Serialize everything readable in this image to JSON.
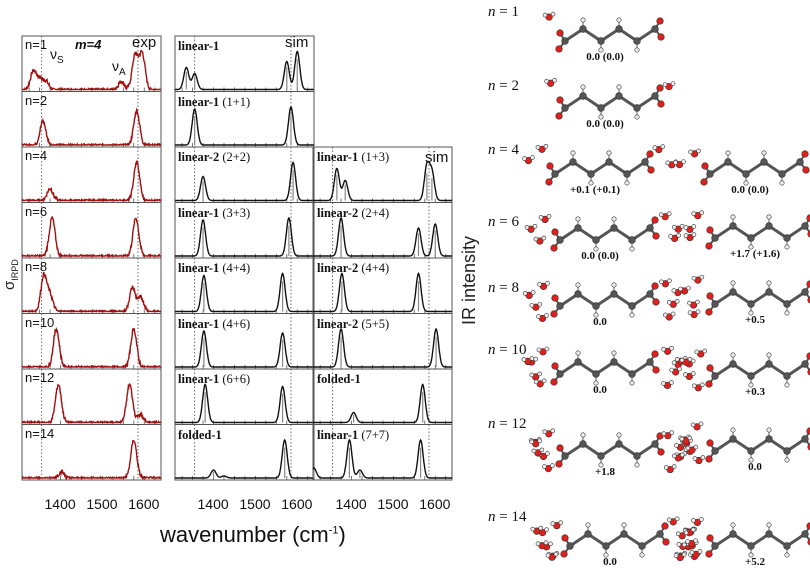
{
  "chart_data": {
    "type": "line",
    "title": "",
    "xlabel": "wavenumber (cm-1)",
    "xlabel_base": "wavenumber (cm",
    "xlabel_sup": "-1",
    "xlabel_close": ")",
    "ylabel_left": "σ",
    "ylabel_left_sub": "IRPD",
    "ylabel_right": "IR intensity",
    "xlim": [
      1308,
      1640
    ],
    "xticks": [
      "1400",
      "1500",
      "1600"
    ],
    "xtick_values": [
      1400,
      1500,
      1600
    ],
    "reference_lines": [
      1355,
      1585
    ],
    "colors": {
      "exp": "#a01010",
      "sim": "#111111",
      "stick": "#888888"
    },
    "header": {
      "m_label": "m=4",
      "exp_label": "exp",
      "sim_label": "sim",
      "nu_s": "ν",
      "nu_s_sub": "S",
      "nu_a": "ν",
      "nu_a_sub": "A"
    },
    "experimental": [
      {
        "n": "n=1",
        "peaks": [
          [
            1335,
            0.45
          ],
          [
            1350,
            0.25
          ],
          [
            1365,
            0.2
          ],
          [
            1545,
            0.2
          ],
          [
            1578,
            0.85
          ],
          [
            1595,
            0.9
          ]
        ]
      },
      {
        "n": "n=2",
        "peaks": [
          [
            1358,
            0.6
          ],
          [
            1582,
            0.85
          ]
        ]
      },
      {
        "n": "n=4",
        "peaks": [
          [
            1375,
            0.3
          ],
          [
            1582,
            0.95
          ]
        ]
      },
      {
        "n": "n=6",
        "peaks": [
          [
            1380,
            0.95
          ],
          [
            1580,
            0.95
          ]
        ]
      },
      {
        "n": "n=8",
        "peaks": [
          [
            1360,
            0.9
          ],
          [
            1375,
            0.4
          ],
          [
            1572,
            0.6
          ],
          [
            1592,
            0.35
          ]
        ]
      },
      {
        "n": "n=10",
        "peaks": [
          [
            1390,
            0.95
          ],
          [
            1575,
            0.95
          ]
        ]
      },
      {
        "n": "n=12",
        "peaks": [
          [
            1395,
            0.95
          ],
          [
            1565,
            0.95
          ],
          [
            1590,
            0.2
          ]
        ]
      },
      {
        "n": "n=14",
        "peaks": [
          [
            1402,
            0.15
          ],
          [
            1575,
            0.95
          ]
        ]
      }
    ],
    "simulated_col1": [
      {
        "name": "linear-1",
        "extra": "",
        "peaks": [
          [
            1335,
            0.55
          ],
          [
            1355,
            0.4
          ],
          [
            1575,
            0.7
          ],
          [
            1600,
            0.95
          ]
        ]
      },
      {
        "name": "linear-1",
        "extra": "(1+1)",
        "peaks": [
          [
            1355,
            0.9
          ],
          [
            1585,
            0.95
          ]
        ]
      },
      {
        "name": "linear-2",
        "extra": "(2+2)",
        "peaks": [
          [
            1375,
            0.6
          ],
          [
            1590,
            0.95
          ]
        ]
      },
      {
        "name": "linear-1",
        "extra": "(3+3)",
        "peaks": [
          [
            1375,
            0.9
          ],
          [
            1580,
            0.95
          ]
        ]
      },
      {
        "name": "linear-1",
        "extra": "(4+4)",
        "peaks": [
          [
            1377,
            0.9
          ],
          [
            1565,
            0.95
          ]
        ]
      },
      {
        "name": "linear-1",
        "extra": "(4+6)",
        "peaks": [
          [
            1377,
            0.9
          ],
          [
            1565,
            0.85
          ]
        ]
      },
      {
        "name": "linear-1",
        "extra": "(6+6)",
        "peaks": [
          [
            1380,
            0.95
          ],
          [
            1565,
            0.9
          ]
        ]
      },
      {
        "name": "folded-1",
        "extra": "",
        "peaks": [
          [
            1400,
            0.2
          ],
          [
            1425,
            0.05
          ],
          [
            1570,
            0.95
          ]
        ]
      }
    ],
    "simulated_col2": [
      {
        "name": "linear-1",
        "extra": "(1+3)",
        "peaks": [
          [
            1365,
            0.8
          ],
          [
            1385,
            0.5
          ],
          [
            1580,
            0.85
          ],
          [
            1592,
            0.7
          ]
        ]
      },
      {
        "name": "linear-2",
        "extra": "(2+4)",
        "peaks": [
          [
            1375,
            0.95
          ],
          [
            1560,
            0.7
          ],
          [
            1600,
            0.8
          ]
        ]
      },
      {
        "name": "linear-2",
        "extra": "(4+4)",
        "peaks": [
          [
            1377,
            0.95
          ],
          [
            1560,
            0.95
          ]
        ]
      },
      {
        "name": "linear-2",
        "extra": "(5+5)",
        "peaks": [
          [
            1375,
            0.95
          ],
          [
            1602,
            0.95
          ]
        ]
      },
      {
        "name": "folded-1",
        "extra": "",
        "peaks": [
          [
            1405,
            0.25
          ],
          [
            1570,
            0.95
          ]
        ]
      },
      {
        "name": "linear-1",
        "extra": "(7+7)",
        "peaks": [
          [
            1310,
            0.25
          ],
          [
            1395,
            0.95
          ],
          [
            1420,
            0.2
          ],
          [
            1565,
            0.95
          ]
        ]
      }
    ]
  },
  "structures": [
    {
      "n_label": "n = 1",
      "energies": [
        "0.0 (0.0)"
      ],
      "waters": [
        1
      ]
    },
    {
      "n_label": "n = 2",
      "energies": [
        "0.0 (0.0)"
      ],
      "waters": [
        2
      ]
    },
    {
      "n_label": "n = 4",
      "energies": [
        "+0.1 (+0.1)",
        "0.0 (0.0)"
      ],
      "waters": [
        4,
        4
      ]
    },
    {
      "n_label": "n = 6",
      "energies": [
        "0.0 (0.0)",
        "+1.7 (+1.6)"
      ],
      "waters": [
        6,
        6
      ]
    },
    {
      "n_label": "n = 8",
      "energies": [
        "0.0",
        "+0.5"
      ],
      "waters": [
        8,
        8
      ]
    },
    {
      "n_label": "n = 10",
      "energies": [
        "0.0",
        "+0.3"
      ],
      "waters": [
        10,
        10
      ]
    },
    {
      "n_label": "n = 12",
      "energies": [
        "+1.8",
        "0.0"
      ],
      "waters": [
        12,
        12
      ]
    },
    {
      "n_label": "n = 14",
      "energies": [
        "0.0",
        "+5.2"
      ],
      "waters": [
        14,
        14
      ]
    }
  ]
}
